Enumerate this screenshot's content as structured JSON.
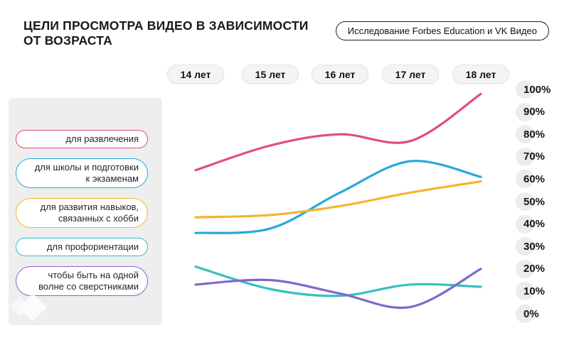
{
  "title": {
    "line1": "ЦЕЛИ ПРОСМОТРА ВИДЕО В ЗАВИСИМОСТИ",
    "line2": "ОТ ВОЗРАСТА"
  },
  "source_badge": "Исследование Forbes Education и VK Видео",
  "legend": {
    "labels": [
      "для развлечения",
      "для школы и подготовки\nк экзаменам",
      "для развития навыков,\nсвязанных с хобби",
      "для профориентации",
      "чтобы быть на одной\nволне со сверстниками"
    ]
  },
  "chart_data": {
    "type": "line",
    "smooth": true,
    "categories": [
      "14 лет",
      "15 лет",
      "16 лет",
      "17 лет",
      "18 лет"
    ],
    "series": [
      {
        "id": "entertainment",
        "name": "для развлечения",
        "color": "#e04d7d",
        "values": [
          64,
          75,
          80,
          77,
          98
        ]
      },
      {
        "id": "school-exams",
        "name": "для школы и подготовки к экзаменам",
        "color": "#2aa7de",
        "values": [
          36,
          38,
          54,
          68,
          61
        ]
      },
      {
        "id": "hobby-skills",
        "name": "для развития навыков, связанных с хобби",
        "color": "#f5b42e",
        "values": [
          43,
          44,
          48,
          54,
          59
        ]
      },
      {
        "id": "career-guidance",
        "name": "для профориентации",
        "color": "#35c1bf",
        "values": [
          21,
          11,
          8,
          13,
          12
        ]
      },
      {
        "id": "peers",
        "name": "чтобы быть на одной волне со сверстниками",
        "color": "#8465cc",
        "values": [
          13,
          15,
          9,
          3,
          20
        ]
      }
    ],
    "y_ticks": [
      "100%",
      "90%",
      "80%",
      "70%",
      "60%",
      "50%",
      "40%",
      "30%",
      "20%",
      "10%",
      "0%"
    ],
    "ylim": [
      0,
      100
    ],
    "xlabel": "",
    "ylabel": "",
    "grid": false,
    "legend_position": "left"
  },
  "colors": {
    "sidebar_bg": "#efeeee",
    "tick_disc": "#ececec",
    "badge_border": "#1c1c1c",
    "text": "#1a1a1a"
  }
}
